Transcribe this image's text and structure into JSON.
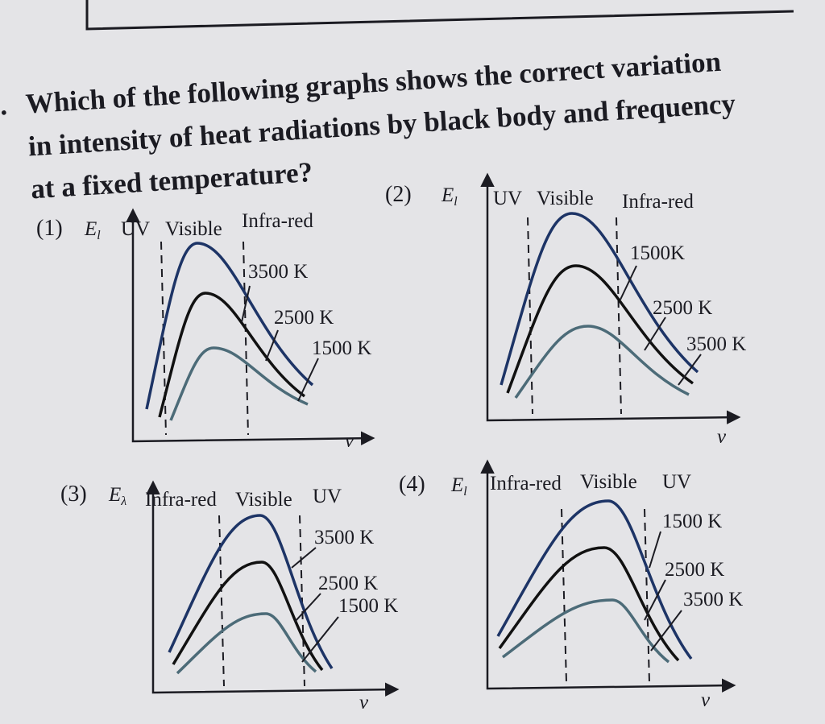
{
  "question": {
    "number": ".",
    "lines": [
      "Which of the following graphs shows the correct variation",
      "in intensity of heat radiations by black body and frequency",
      "at a fixed temperature?"
    ]
  },
  "options": [
    {
      "label": "(1)",
      "y_axis": "E",
      "y_axis_sub": "l",
      "x_axis": "ν",
      "regions": [
        "UV",
        "Visible",
        "Infra-red"
      ],
      "curves": [
        "3500 K",
        "2500 K",
        "1500 K"
      ]
    },
    {
      "label": "(2)",
      "y_axis": "E",
      "y_axis_sub": "l",
      "x_axis": "ν",
      "regions": [
        "UV",
        "Visible",
        "Infra-red"
      ],
      "curves": [
        "1500K",
        "2500 K",
        "3500 K"
      ]
    },
    {
      "label": "(3)",
      "y_axis": "E",
      "y_axis_sub": "λ",
      "x_axis": "ν",
      "regions": [
        "Infra-red",
        "Visible",
        "UV"
      ],
      "curves": [
        "3500 K",
        "2500 K",
        "1500 K"
      ]
    },
    {
      "label": "(4)",
      "y_axis": "E",
      "y_axis_sub": "l",
      "x_axis": "ν",
      "regions": [
        "Infra-red",
        "Visible",
        "UV"
      ],
      "curves": [
        "1500 K",
        "2500 K",
        "3500 K"
      ]
    }
  ]
}
